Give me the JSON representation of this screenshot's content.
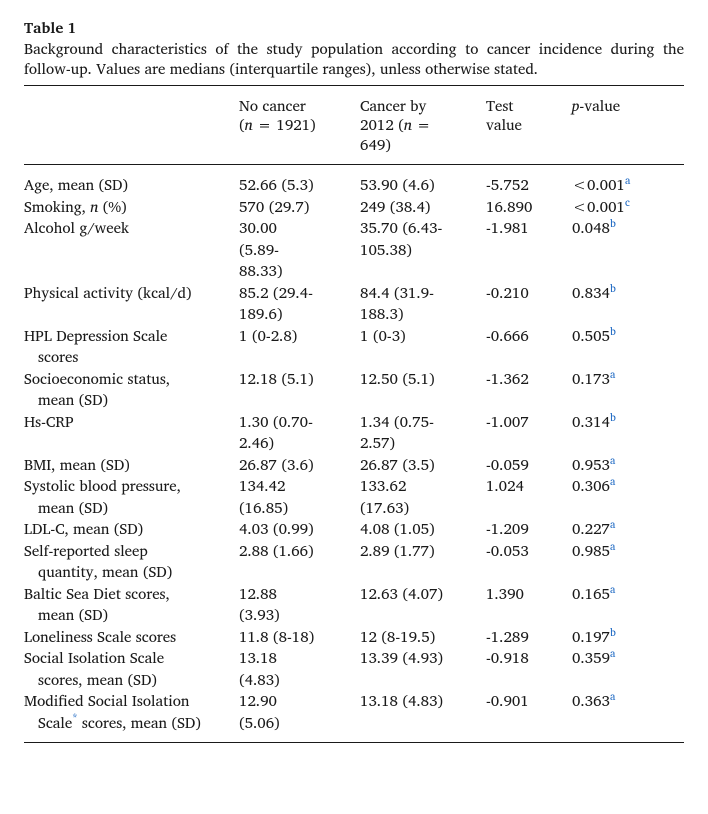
{
  "title": "Table 1",
  "caption": "Background characteristics of the study population according to cancer incidence during the follow-up. Values are medians (interquartile ranges), unless otherwise stated.",
  "headers": {
    "col1": "",
    "col2": {
      "l1": "No cancer",
      "l2_pre": "(",
      "l2_n": "n",
      "l2_post": " = 1921)"
    },
    "col3": {
      "l1": "Cancer by",
      "l2_pre": "2012 (",
      "l2_n": "n",
      "l2_post": " =",
      "l3": "649)"
    },
    "col4": {
      "l1": "Test",
      "l2": "value"
    },
    "col5": {
      "p": "p",
      "post": "-value"
    }
  },
  "rows": [
    {
      "label_lines": [
        "Age, mean (SD)"
      ],
      "c2_lines": [
        "52.66 (5.3)"
      ],
      "c3_lines": [
        "53.90 (4.6)"
      ],
      "test": "-5.752",
      "p": "<0.001",
      "sup": "a"
    },
    {
      "label_lines": [
        "Smoking, ",
        " (%)"
      ],
      "label_ital_between": "n",
      "c2_lines": [
        "570 (29.7)"
      ],
      "c3_lines": [
        "249 (38.4)"
      ],
      "test": "16.890",
      "p": "<0.001",
      "sup": "c"
    },
    {
      "label_lines": [
        "Alcohol g/week"
      ],
      "c2_lines": [
        "30.00",
        "(5.89-",
        "88.33)"
      ],
      "c3_lines": [
        "35.70 (6.43-",
        "105.38)"
      ],
      "test": "-1.981",
      "p": "0.048",
      "sup": "b"
    },
    {
      "label_lines": [
        "Physical activity (kcal/d)"
      ],
      "c2_lines": [
        "85.2 (29.4-",
        "189.6)"
      ],
      "c3_lines": [
        "84.4 (31.9-",
        "188.3)"
      ],
      "test": "-0.210",
      "p": "0.834",
      "sup": "b"
    },
    {
      "label_lines": [
        "HPL Depression Scale",
        "scores"
      ],
      "c2_lines": [
        "1 (0-2.8)"
      ],
      "c3_lines": [
        "1 (0-3)"
      ],
      "test": "-0.666",
      "p": "0.505",
      "sup": "b"
    },
    {
      "label_lines": [
        "Socioeconomic status,",
        "mean (SD)"
      ],
      "c2_lines": [
        "12.18 (5.1)"
      ],
      "c3_lines": [
        "12.50 (5.1)"
      ],
      "test": "-1.362",
      "p": "0.173",
      "sup": "a"
    },
    {
      "label_lines": [
        "Hs-CRP"
      ],
      "c2_lines": [
        "1.30 (0.70-",
        "2.46)"
      ],
      "c3_lines": [
        "1.34 (0.75-",
        "2.57)"
      ],
      "test": "-1.007",
      "p": "0.314",
      "sup": "b"
    },
    {
      "label_lines": [
        "BMI, mean (SD)"
      ],
      "c2_lines": [
        "26.87 (3.6)"
      ],
      "c3_lines": [
        "26.87 (3.5)"
      ],
      "test": "-0.059",
      "p": "0.953",
      "sup": "a"
    },
    {
      "label_lines": [
        "Systolic blood pressure,",
        "mean (SD)"
      ],
      "c2_lines": [
        "134.42",
        "(16.85)"
      ],
      "c3_lines": [
        "133.62",
        "(17.63)"
      ],
      "test": "1.024",
      "p": "0.306",
      "sup": "a"
    },
    {
      "label_lines": [
        "LDL-C, mean (SD)"
      ],
      "c2_lines": [
        "4.03 (0.99)"
      ],
      "c3_lines": [
        "4.08 (1.05)"
      ],
      "test": "-1.209",
      "p": "0.227",
      "sup": "a"
    },
    {
      "label_lines": [
        "Self-reported sleep",
        "quantity, mean (SD)"
      ],
      "c2_lines": [
        "2.88 (1.66)"
      ],
      "c3_lines": [
        "2.89 (1.77)"
      ],
      "test": "-0.053",
      "p": "0.985",
      "sup": "a"
    },
    {
      "label_lines": [
        "Baltic Sea Diet scores,",
        "mean (SD)"
      ],
      "c2_lines": [
        "12.88",
        "(3.93)"
      ],
      "c3_lines": [
        "12.63 (4.07)"
      ],
      "test": "1.390",
      "p": "0.165",
      "sup": "a"
    },
    {
      "label_lines": [
        "Loneliness Scale scores"
      ],
      "c2_lines": [
        "11.8 (8-18)"
      ],
      "c3_lines": [
        "12 (8-19.5)"
      ],
      "test": "-1.289",
      "p": "0.197",
      "sup": "b"
    },
    {
      "label_lines": [
        "Social Isolation Scale",
        "scores, mean (SD)"
      ],
      "c2_lines": [
        "13.18",
        "(4.83)"
      ],
      "c3_lines": [
        "13.39 (4.93)"
      ],
      "test": "-0.918",
      "p": "0.359",
      "sup": "a"
    },
    {
      "label_lines": [
        "Modified Social Isolation",
        "Scale",
        " scores, mean (SD)"
      ],
      "label_star_after_idx": 1,
      "c2_lines": [
        "12.90",
        "(5.06)"
      ],
      "c3_lines": [
        "13.18 (4.83)"
      ],
      "test": "-0.901",
      "p": "0.363",
      "sup": "a"
    }
  ],
  "colors": {
    "text": "#1a1a1a",
    "rule": "#1a1a1a",
    "link": "#1a66c2",
    "background": "#ffffff"
  },
  "fonts": {
    "base_size_pt": 11.3,
    "family": "serif"
  }
}
